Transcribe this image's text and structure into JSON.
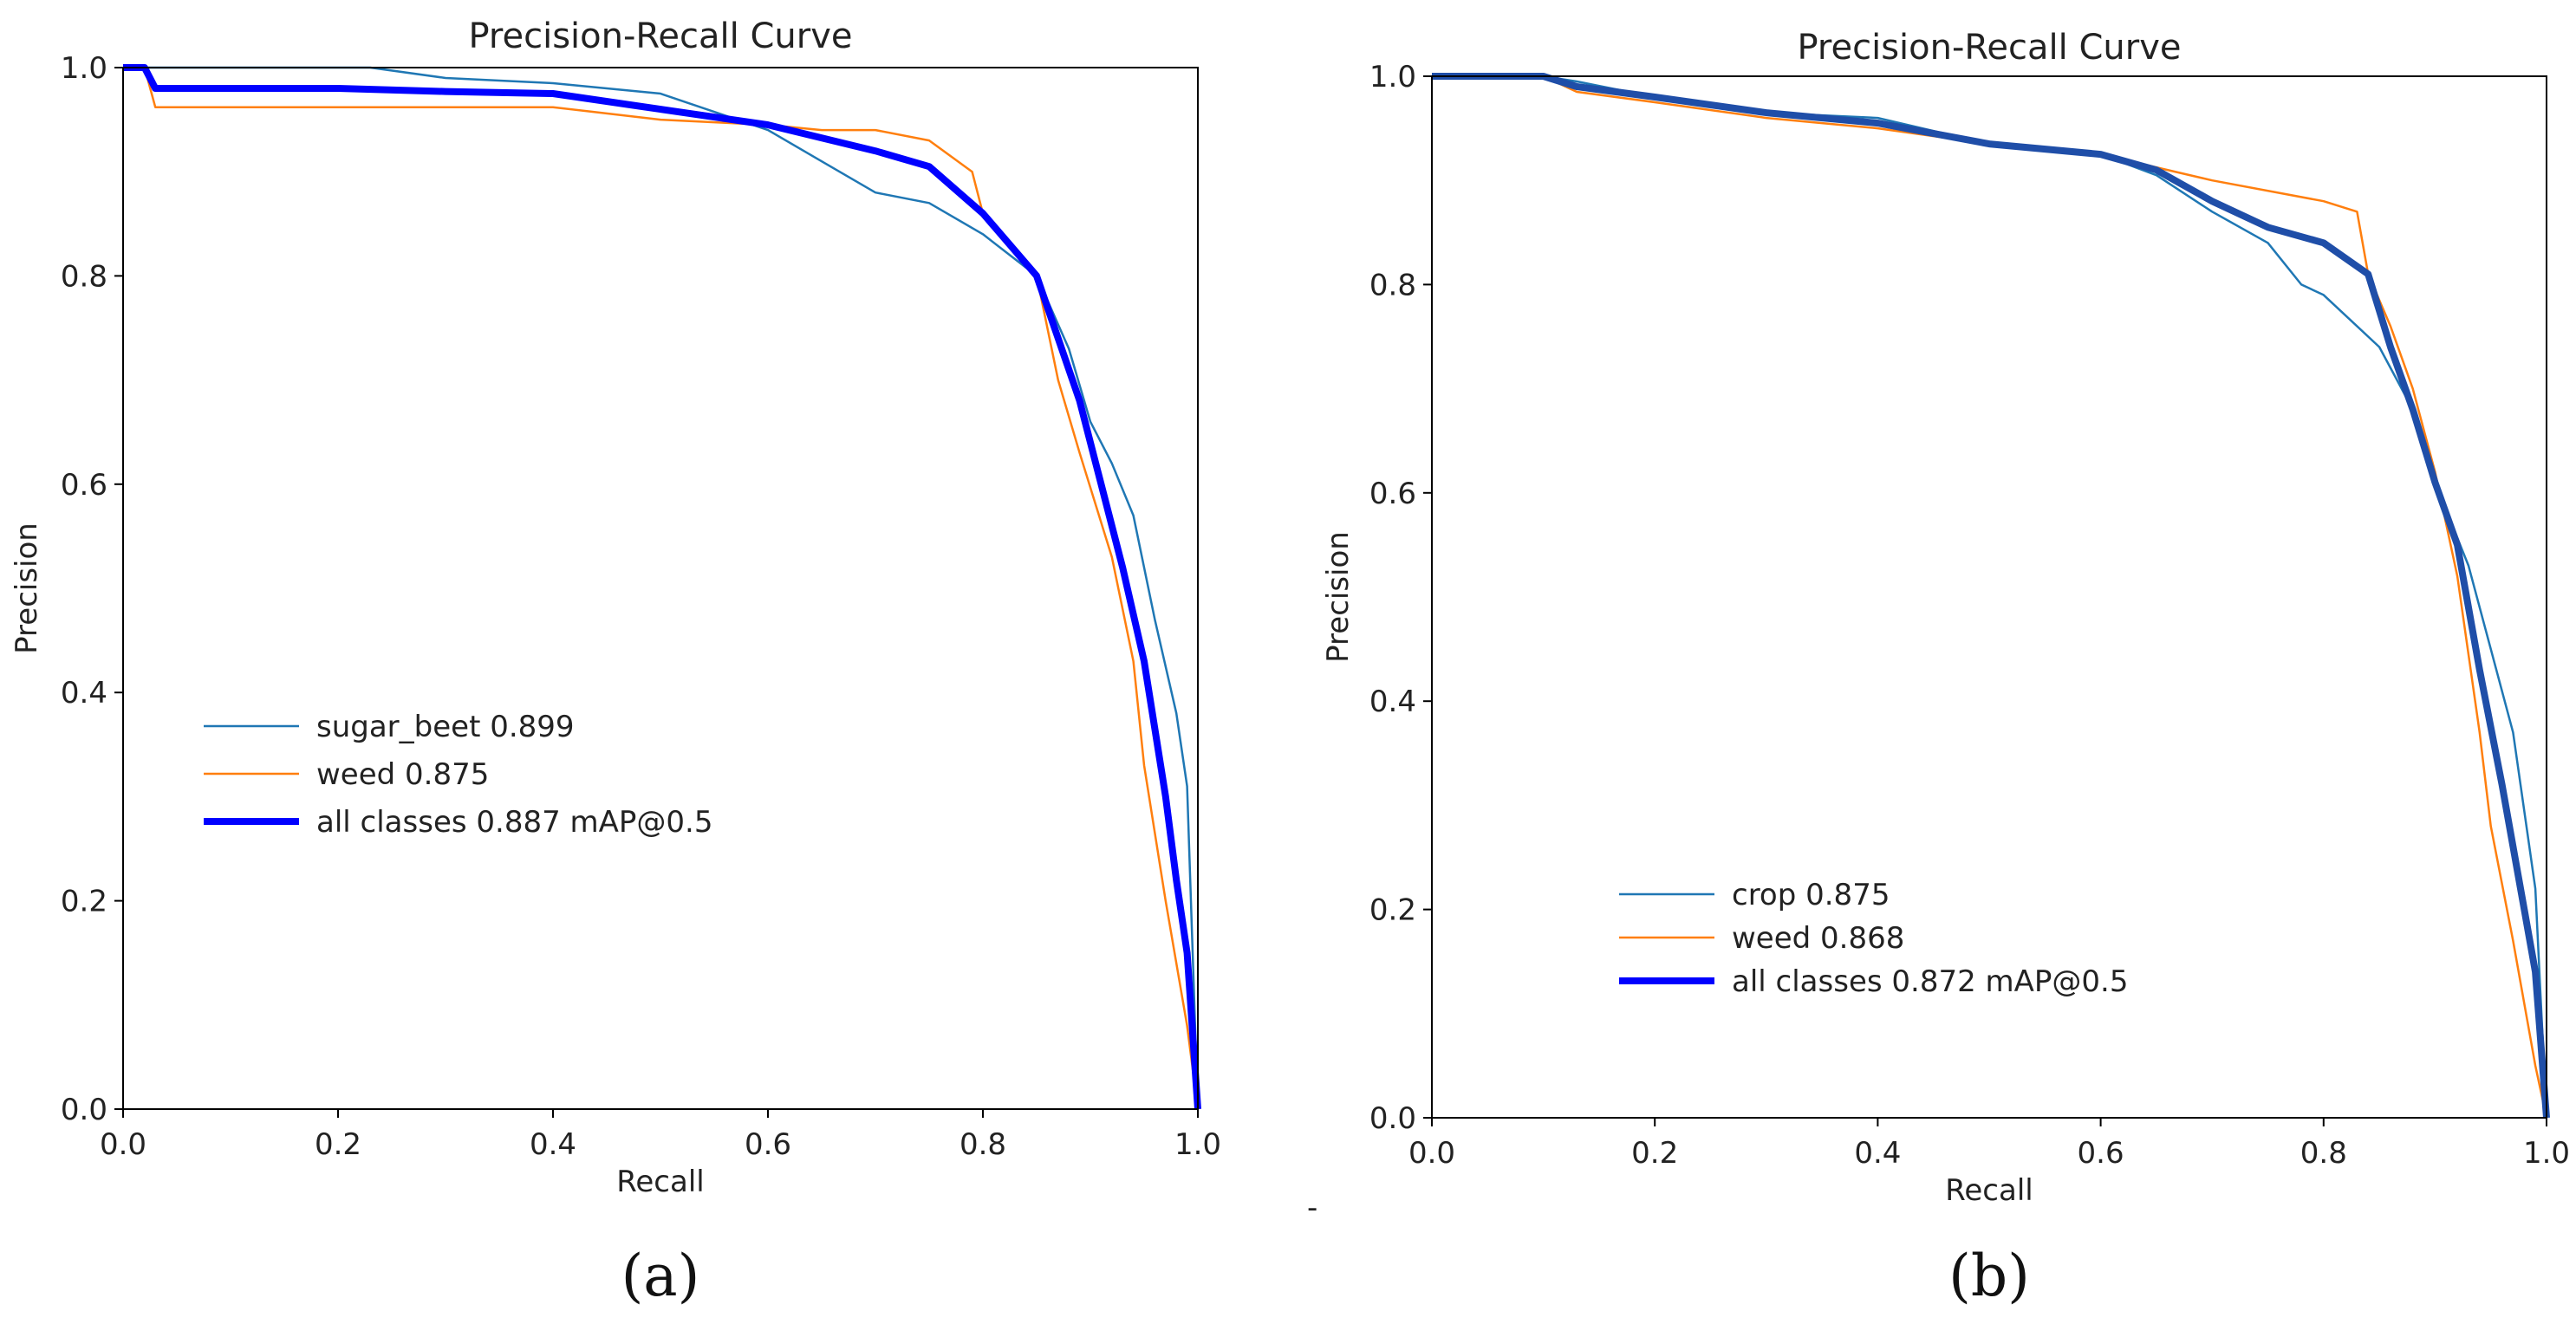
{
  "chart_data": [
    {
      "type": "line",
      "title": "Precision-Recall Curve",
      "xlabel": "Recall",
      "ylabel": "Precision",
      "xlim": [
        0,
        1
      ],
      "ylim": [
        0,
        1
      ],
      "xticks": [
        "0.0",
        "0.2",
        "0.4",
        "0.6",
        "0.8",
        "1.0"
      ],
      "yticks": [
        "0.0",
        "0.2",
        "0.4",
        "0.6",
        "0.8",
        "1.0"
      ],
      "panel_label": "(a)",
      "legend_position": "center-left",
      "series": [
        {
          "name": "sugar_beet 0.899",
          "color": "#1f77b4",
          "x": [
            0,
            0.02,
            0.03,
            0.1,
            0.2,
            0.23,
            0.3,
            0.4,
            0.5,
            0.6,
            0.65,
            0.7,
            0.75,
            0.8,
            0.85,
            0.88,
            0.9,
            0.92,
            0.94,
            0.96,
            0.98,
            0.99,
            1.0
          ],
          "y": [
            1.0,
            1.0,
            1.0,
            1.0,
            1.0,
            1.0,
            0.99,
            0.985,
            0.975,
            0.94,
            0.91,
            0.88,
            0.87,
            0.84,
            0.8,
            0.73,
            0.66,
            0.62,
            0.57,
            0.47,
            0.38,
            0.31,
            0.0
          ]
        },
        {
          "name": "weed 0.875",
          "color": "#ff7f0e",
          "x": [
            0,
            0.02,
            0.03,
            0.2,
            0.4,
            0.5,
            0.6,
            0.65,
            0.7,
            0.75,
            0.79,
            0.8,
            0.85,
            0.87,
            0.89,
            0.92,
            0.94,
            0.95,
            0.97,
            0.99,
            1.0
          ],
          "y": [
            1.0,
            1.0,
            0.962,
            0.962,
            0.962,
            0.95,
            0.945,
            0.94,
            0.94,
            0.93,
            0.9,
            0.86,
            0.8,
            0.7,
            0.63,
            0.53,
            0.43,
            0.33,
            0.2,
            0.08,
            0.0
          ]
        },
        {
          "name": "all classes 0.887 mAP@0.5",
          "color": "#0000ff",
          "thick": true,
          "x": [
            0,
            0.02,
            0.03,
            0.2,
            0.3,
            0.4,
            0.5,
            0.6,
            0.7,
            0.75,
            0.8,
            0.85,
            0.87,
            0.89,
            0.91,
            0.93,
            0.95,
            0.97,
            0.98,
            0.99,
            1.0
          ],
          "y": [
            1.0,
            1.0,
            0.98,
            0.98,
            0.977,
            0.975,
            0.96,
            0.945,
            0.92,
            0.905,
            0.86,
            0.8,
            0.74,
            0.68,
            0.6,
            0.52,
            0.43,
            0.3,
            0.22,
            0.15,
            0.0
          ]
        }
      ]
    },
    {
      "type": "line",
      "title": "Precision-Recall Curve",
      "xlabel": "Recall",
      "ylabel": "Precision",
      "xlim": [
        0,
        1
      ],
      "ylim": [
        0,
        1
      ],
      "xticks": [
        "0.0",
        "0.2",
        "0.4",
        "0.6",
        "0.8",
        "1.0"
      ],
      "yticks": [
        "0.0",
        "0.2",
        "0.4",
        "0.6",
        "0.8",
        "1.0"
      ],
      "panel_label": "(b)",
      "legend_position": "lower-center",
      "series": [
        {
          "name": "crop 0.875",
          "color": "#1f77b4",
          "x": [
            0,
            0.1,
            0.13,
            0.2,
            0.3,
            0.4,
            0.5,
            0.6,
            0.65,
            0.7,
            0.75,
            0.78,
            0.8,
            0.85,
            0.88,
            0.9,
            0.93,
            0.95,
            0.97,
            0.99,
            1.0
          ],
          "y": [
            1.0,
            1.0,
            0.995,
            0.98,
            0.965,
            0.96,
            0.935,
            0.925,
            0.905,
            0.87,
            0.84,
            0.8,
            0.79,
            0.74,
            0.68,
            0.61,
            0.53,
            0.45,
            0.37,
            0.22,
            0.0
          ]
        },
        {
          "name": "weed 0.868",
          "color": "#ff7f0e",
          "x": [
            0,
            0.1,
            0.13,
            0.2,
            0.3,
            0.4,
            0.5,
            0.6,
            0.7,
            0.8,
            0.83,
            0.84,
            0.86,
            0.88,
            0.9,
            0.92,
            0.94,
            0.95,
            0.97,
            0.99,
            1.0
          ],
          "y": [
            1.0,
            1.0,
            0.985,
            0.975,
            0.96,
            0.95,
            0.935,
            0.925,
            0.9,
            0.88,
            0.87,
            0.81,
            0.76,
            0.7,
            0.62,
            0.52,
            0.37,
            0.28,
            0.17,
            0.05,
            0.0
          ]
        },
        {
          "name": "all classes 0.872 mAP@0.5",
          "color": "#1f4ea8",
          "legend_color": "#0000ff",
          "thick": true,
          "x": [
            0,
            0.1,
            0.13,
            0.2,
            0.3,
            0.4,
            0.5,
            0.6,
            0.65,
            0.7,
            0.75,
            0.8,
            0.84,
            0.86,
            0.88,
            0.9,
            0.92,
            0.94,
            0.96,
            0.98,
            0.99,
            1.0
          ],
          "y": [
            1.0,
            1.0,
            0.99,
            0.98,
            0.965,
            0.955,
            0.935,
            0.925,
            0.91,
            0.88,
            0.855,
            0.84,
            0.81,
            0.74,
            0.68,
            0.61,
            0.55,
            0.43,
            0.32,
            0.2,
            0.14,
            0.0
          ]
        }
      ]
    }
  ],
  "divider_mark": "-"
}
